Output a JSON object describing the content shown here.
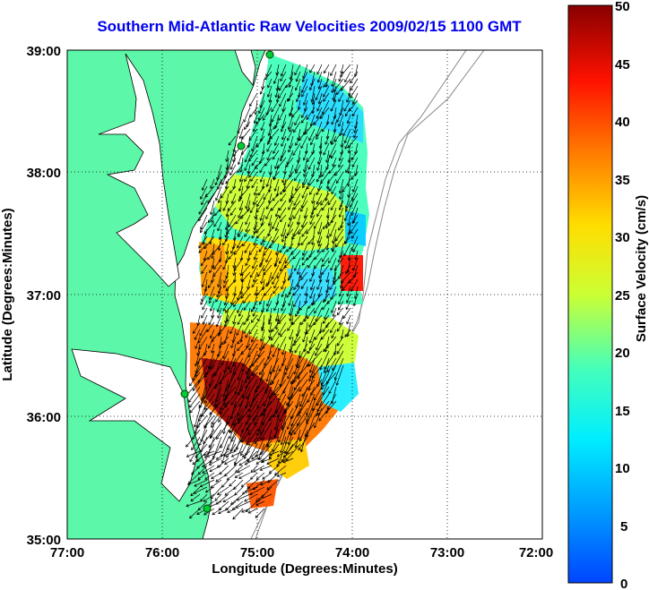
{
  "title": "Southern Mid-Atlantic Raw Velocities 2009/02/15 1100 GMT",
  "xlabel": "Longitude (Degrees:Minutes)",
  "ylabel": "Latitude (Degrees:Minutes)",
  "x_ticks": [
    "77:00",
    "76:00",
    "75:00",
    "74:00",
    "73:00",
    "72:00"
  ],
  "y_ticks": [
    "39:00",
    "38:00",
    "37:00",
    "36:00",
    "35:00"
  ],
  "colorbar": {
    "label": "Surface Velocity (cm/s)",
    "ticks": [
      "50",
      "45",
      "40",
      "35",
      "30",
      "25",
      "20",
      "15",
      "10",
      "5",
      "0"
    ],
    "range": [
      0,
      50
    ],
    "colormap": "jet"
  },
  "map": {
    "lon_range": [
      -77,
      -72
    ],
    "lat_range": [
      35,
      39
    ],
    "land_color": "#5cf7a8",
    "water_color": "#ffffff",
    "arrow_color": "#000000",
    "station_color": "#00cc33"
  }
}
